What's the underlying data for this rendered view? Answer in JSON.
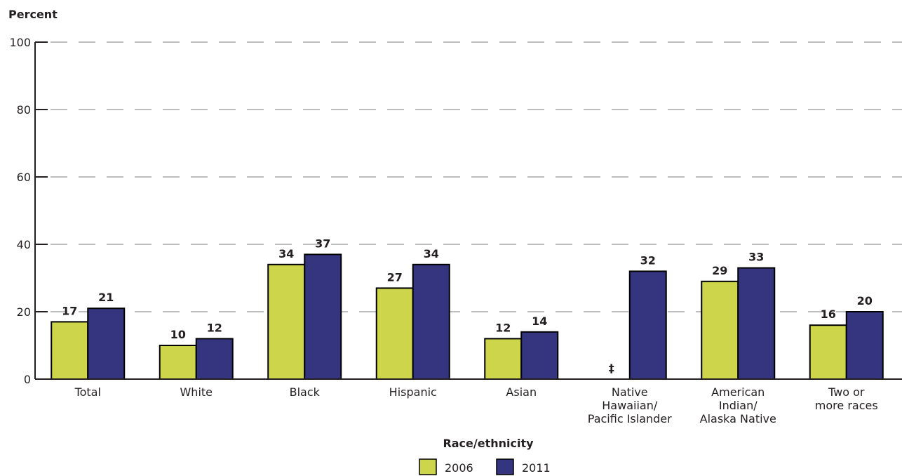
{
  "chart_data": {
    "type": "bar",
    "ylabel": "Percent",
    "xlabel": "Race/ethnicity",
    "ylim": [
      0,
      100
    ],
    "yticks": [
      0,
      20,
      40,
      60,
      80,
      100
    ],
    "grid": true,
    "legend_placement": "bottom-center",
    "categories": [
      [
        "Total"
      ],
      [
        "White"
      ],
      [
        "Black"
      ],
      [
        "Hispanic"
      ],
      [
        "Asian"
      ],
      [
        "Native",
        "Hawaiian/",
        "Pacific Islander"
      ],
      [
        "American",
        "Indian/",
        "Alaska Native"
      ],
      [
        "Two or",
        "more races"
      ]
    ],
    "series": [
      {
        "name": "2006",
        "color": "#cdd64a",
        "values": [
          17,
          10,
          34,
          27,
          12,
          null,
          29,
          16
        ],
        "labels": [
          "17",
          "10",
          "34",
          "27",
          "12",
          "‡",
          "29",
          "16"
        ]
      },
      {
        "name": "2011",
        "color": "#35347f",
        "values": [
          21,
          12,
          37,
          34,
          14,
          32,
          33,
          20
        ],
        "labels": [
          "21",
          "12",
          "37",
          "34",
          "14",
          "32",
          "33",
          "20"
        ]
      }
    ]
  }
}
